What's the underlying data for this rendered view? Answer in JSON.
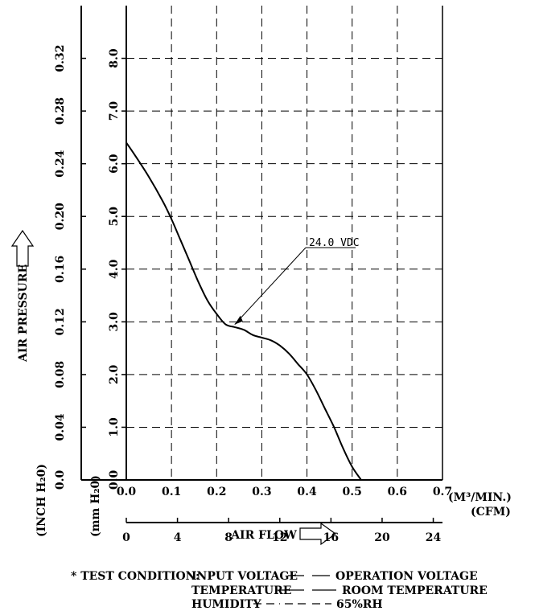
{
  "chart_data": {
    "type": "line",
    "series": [
      {
        "name": "24.0 VDC",
        "x": [
          0.0,
          0.02,
          0.05,
          0.08,
          0.1,
          0.12,
          0.14,
          0.16,
          0.18,
          0.2,
          0.22,
          0.24,
          0.26,
          0.28,
          0.3,
          0.32,
          0.34,
          0.36,
          0.38,
          0.4,
          0.42,
          0.44,
          0.46,
          0.48,
          0.5,
          0.52
        ],
        "y": [
          6.4,
          6.15,
          5.75,
          5.3,
          4.95,
          4.55,
          4.15,
          3.75,
          3.4,
          3.15,
          2.95,
          2.9,
          2.85,
          2.75,
          2.7,
          2.65,
          2.55,
          2.4,
          2.2,
          2.0,
          1.7,
          1.35,
          1.0,
          0.6,
          0.25,
          0.0
        ]
      }
    ],
    "x_axis": {
      "ticks": [
        "0.0",
        "0.1",
        "0.2",
        "0.3",
        "0.4",
        "0.5",
        "0.6",
        "0.7"
      ],
      "range": [
        0,
        0.7
      ],
      "unit": "(M³/MIN.)"
    },
    "x_axis_secondary": {
      "ticks": [
        "0",
        "4",
        "8",
        "12",
        "16",
        "20",
        "24"
      ],
      "range": [
        0,
        24.72
      ],
      "unit": "(CFM)"
    },
    "y_axis": {
      "ticks": [
        "0.0",
        "1.0",
        "2.0",
        "3.0",
        "4.0",
        "5.0",
        "6.0",
        "7.0",
        "8.0"
      ],
      "range": [
        0,
        9
      ],
      "unit": "(mm H₂0)"
    },
    "y_axis_secondary": {
      "ticks": [
        "0.0",
        "0.04",
        "0.08",
        "0.12",
        "0.16",
        "0.20",
        "0.24",
        "0.28",
        "0.32"
      ],
      "unit": "(INCH H₂0)"
    },
    "xlabel": "AIR FLOW",
    "ylabel": "AIR PRESSURE",
    "grid": true,
    "annotation": "24.0 VDC"
  },
  "notes": {
    "line1_prefix": "* TEST CONDITION:",
    "line1_left": "INPUT VOLTAGE",
    "line1_right": "OPERATION VOLTAGE",
    "line2_left": "TEMPERATURE",
    "line2_right": "ROOM TEMPERATURE",
    "line3_left": "HUMIDITY",
    "line3_right": "65%RH"
  }
}
